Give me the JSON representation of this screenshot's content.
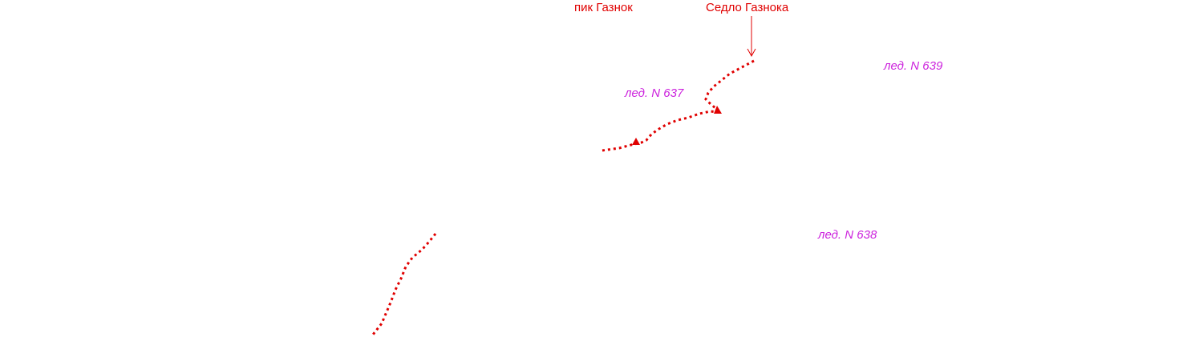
{
  "map": {
    "peak": {
      "name": "пик Газнок"
    },
    "pass": {
      "name": "Седло Газнока"
    },
    "glaciers": [
      {
        "id": "g637",
        "name": "лед. N 637"
      },
      {
        "id": "g639",
        "name": "лед. N 639"
      },
      {
        "id": "g638",
        "name": "лед. N 638"
      }
    ],
    "colors": {
      "route": "#e00000",
      "peak_label": "#e00000",
      "pass_label": "#e00000",
      "glacier_label": "#cc22dd"
    }
  }
}
